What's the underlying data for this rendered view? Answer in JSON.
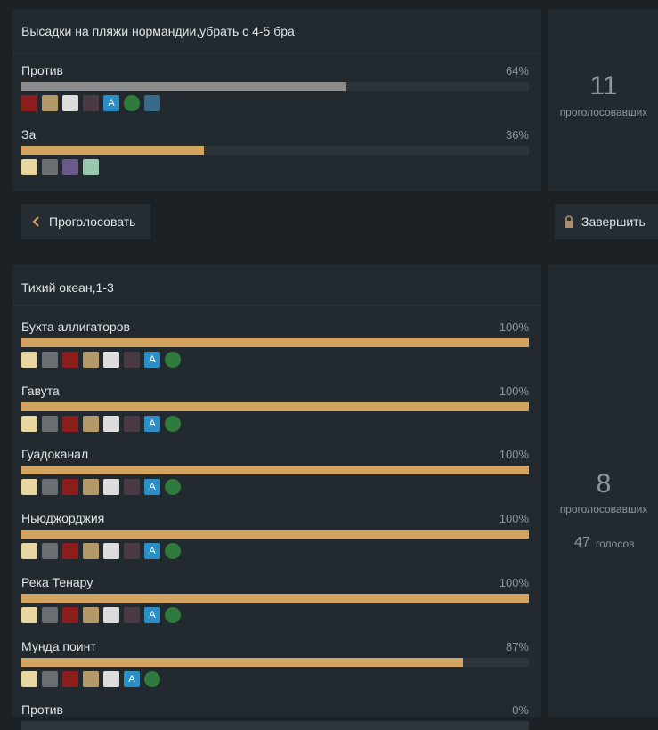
{
  "poll1": {
    "title": "Высадки на пляжи нормандии,убрать с 4-5 бра",
    "options": [
      {
        "label": "Против",
        "percent": {
          "value": 64,
          "label": "64%"
        },
        "color": "#8c8c8c"
      },
      {
        "label": "За",
        "percent": {
          "value": 36,
          "label": "36%"
        },
        "color": "#d4a35f"
      }
    ],
    "voters": {
      "count": "11",
      "label": "проголосовавших"
    }
  },
  "buttons": {
    "vote": "Проголосовать",
    "close": "Завершить"
  },
  "poll2": {
    "title": "Тихий океан,1-3",
    "options": [
      {
        "label": "Бухта аллигаторов",
        "percent": {
          "value": 100,
          "label": "100%"
        },
        "color": "#d4a35f"
      },
      {
        "label": "Гавута",
        "percent": {
          "value": 100,
          "label": "100%"
        },
        "color": "#d4a35f"
      },
      {
        "label": "Гуадоканал",
        "percent": {
          "value": 100,
          "label": "100%"
        },
        "color": "#d4a35f"
      },
      {
        "label": "Ньюджорджия",
        "percent": {
          "value": 100,
          "label": "100%"
        },
        "color": "#d4a35f"
      },
      {
        "label": "Река Тенару",
        "percent": {
          "value": 100,
          "label": "100%"
        },
        "color": "#d4a35f"
      },
      {
        "label": "Мунда поинт",
        "percent": {
          "value": 87,
          "label": "87%"
        },
        "color": "#d4a35f"
      },
      {
        "label": "Против",
        "percent": {
          "value": 0,
          "label": "0%"
        },
        "color": "#d4a35f"
      }
    ],
    "voters": {
      "count": "8",
      "label": "проголосовавших"
    },
    "votes": {
      "count": "47",
      "label": "голосов"
    }
  },
  "avatar_letter": "A"
}
